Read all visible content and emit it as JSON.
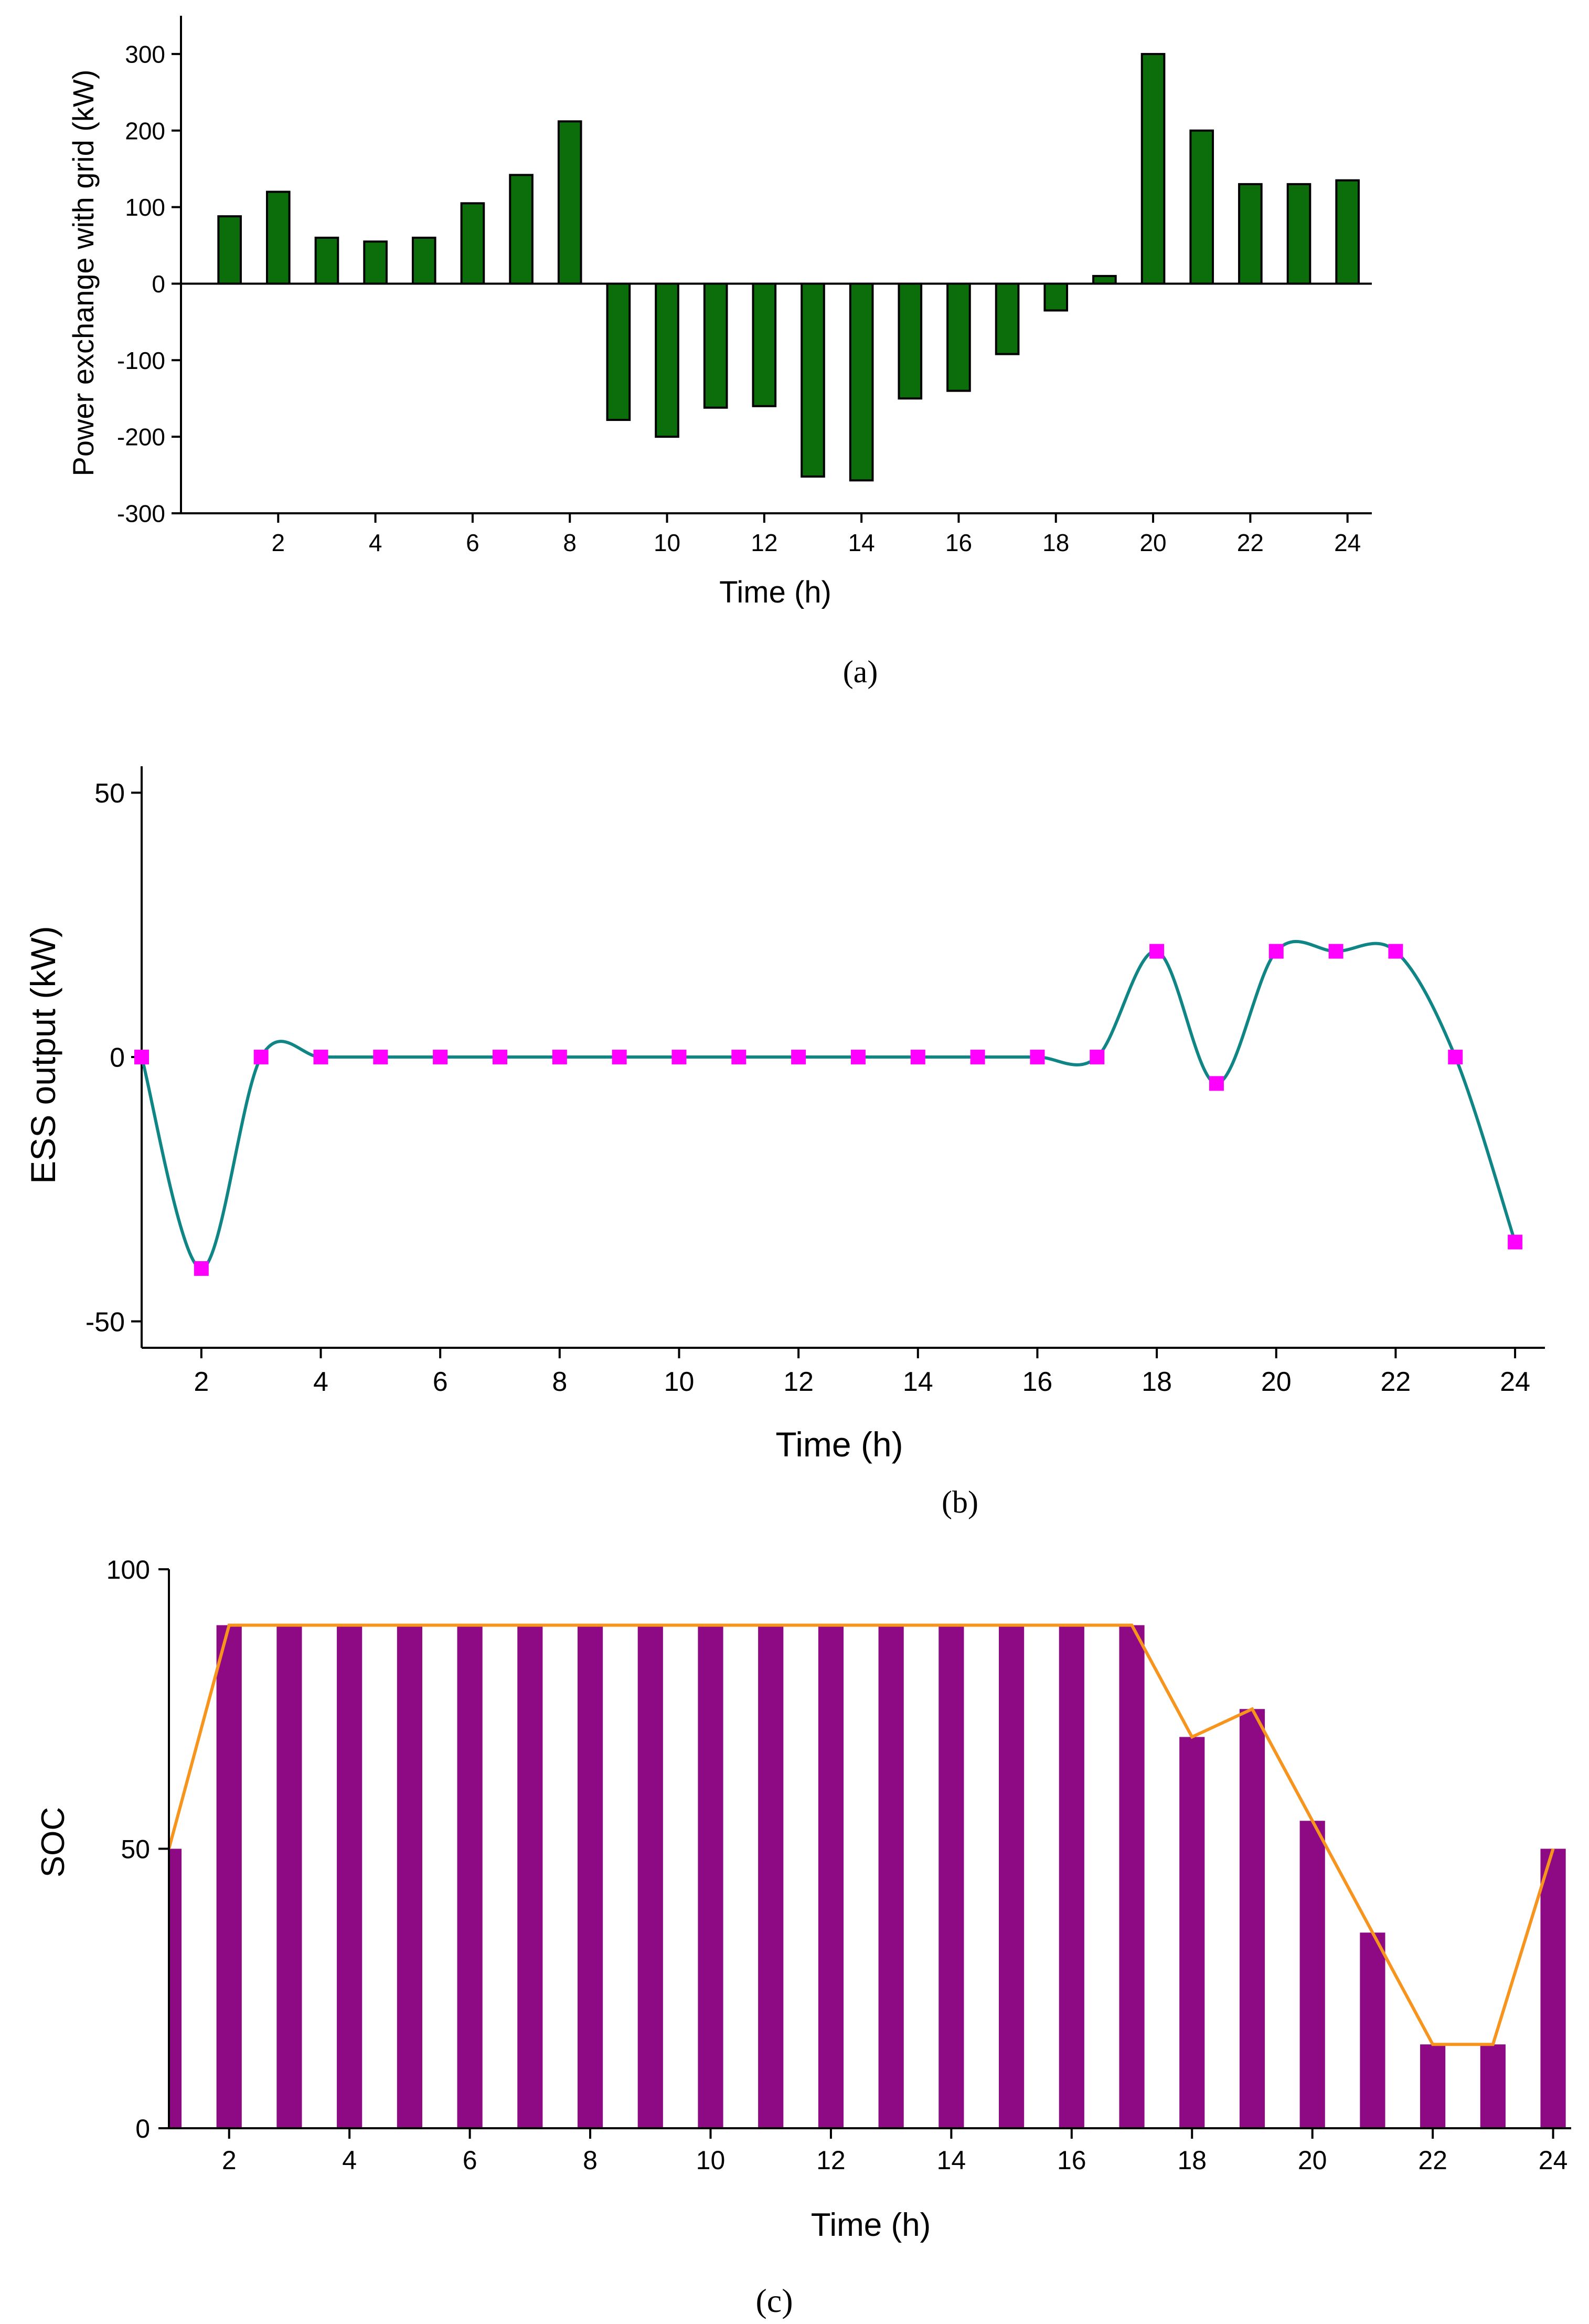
{
  "chart_data": [
    {
      "id": "a",
      "type": "bar",
      "caption": "(a)",
      "xlabel": "Time (h)",
      "ylabel": "Power exchange with grid (kW)",
      "xlim": [
        0,
        24.5
      ],
      "ylim": [
        -300,
        350
      ],
      "xticks": [
        2,
        4,
        6,
        8,
        10,
        12,
        14,
        16,
        18,
        20,
        22,
        24
      ],
      "yticks": [
        -300,
        -200,
        -100,
        0,
        100,
        200,
        300
      ],
      "color": "#0b6e0b",
      "x": [
        1,
        2,
        3,
        4,
        5,
        6,
        7,
        8,
        9,
        10,
        11,
        12,
        13,
        14,
        15,
        16,
        17,
        18,
        19,
        20,
        21,
        22,
        23,
        24
      ],
      "values": [
        88,
        120,
        60,
        55,
        60,
        105,
        142,
        212,
        -178,
        -200,
        -162,
        -160,
        -252,
        -257,
        -150,
        -140,
        -92,
        -35,
        10,
        300,
        200,
        130,
        130,
        135
      ]
    },
    {
      "id": "b",
      "type": "line",
      "caption": "(b)",
      "xlabel": "Time (h)",
      "ylabel": "ESS output (kW)",
      "xlim": [
        1,
        24.5
      ],
      "ylim": [
        -55,
        55
      ],
      "xticks": [
        2,
        4,
        6,
        8,
        10,
        12,
        14,
        16,
        18,
        20,
        22,
        24
      ],
      "yticks": [
        -50,
        0,
        50
      ],
      "line_color": "#108585",
      "marker_color": "#ff00ff",
      "x": [
        1,
        2,
        3,
        4,
        5,
        6,
        7,
        8,
        9,
        10,
        11,
        12,
        13,
        14,
        15,
        16,
        17,
        18,
        19,
        20,
        21,
        22,
        23,
        24
      ],
      "values": [
        0,
        -40,
        0,
        0,
        0,
        0,
        0,
        0,
        0,
        0,
        0,
        0,
        0,
        0,
        0,
        0,
        0,
        20,
        -5,
        20,
        20,
        20,
        0,
        -35
      ]
    },
    {
      "id": "c",
      "type": "bar",
      "caption": "(c)",
      "xlabel": "Time (h)",
      "ylabel": "SOC",
      "xlim": [
        1,
        24.3
      ],
      "ylim": [
        0,
        100
      ],
      "xticks": [
        2,
        4,
        6,
        8,
        10,
        12,
        14,
        16,
        18,
        20,
        22,
        24
      ],
      "yticks": [
        0,
        50,
        100
      ],
      "bar_color": "#8e0a84",
      "line_color": "#f7941d",
      "x": [
        1,
        2,
        3,
        4,
        5,
        6,
        7,
        8,
        9,
        10,
        11,
        12,
        13,
        14,
        15,
        16,
        17,
        18,
        19,
        20,
        21,
        22,
        23,
        24
      ],
      "values": [
        50,
        90,
        90,
        90,
        90,
        90,
        90,
        90,
        90,
        90,
        90,
        90,
        90,
        90,
        90,
        90,
        90,
        70,
        75,
        55,
        35,
        15,
        15,
        50
      ]
    }
  ]
}
